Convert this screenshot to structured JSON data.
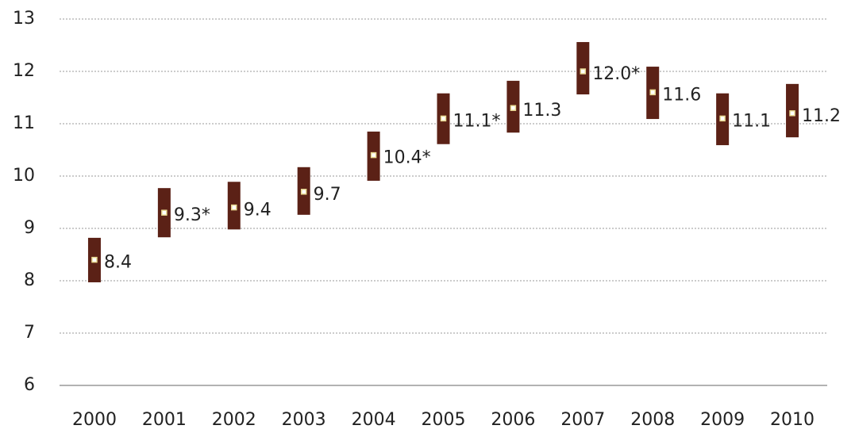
{
  "chart_data": {
    "type": "interval",
    "categories": [
      "2000",
      "2001",
      "2002",
      "2003",
      "2004",
      "2005",
      "2006",
      "2007",
      "2008",
      "2009",
      "2010"
    ],
    "values": [
      8.4,
      9.3,
      9.4,
      9.7,
      10.4,
      11.1,
      11.3,
      12.0,
      11.6,
      11.1,
      11.2
    ],
    "value_labels": [
      "8.4",
      "9.3*",
      "9.4",
      "9.7",
      "10.4*",
      "11.1*",
      "11.3",
      "12.0*",
      "11.6",
      "11.1",
      "11.2"
    ],
    "lows": [
      7.97,
      8.83,
      8.98,
      9.26,
      9.91,
      10.61,
      10.83,
      11.56,
      11.09,
      10.59,
      10.74
    ],
    "highs": [
      8.82,
      9.77,
      9.89,
      10.17,
      10.85,
      11.58,
      11.82,
      12.56,
      12.09,
      11.58,
      11.76
    ],
    "color": "#5b2116",
    "ylim": [
      6,
      13
    ],
    "yticks": [
      6,
      7,
      8,
      9,
      10,
      11,
      12,
      13
    ],
    "grid": true
  }
}
